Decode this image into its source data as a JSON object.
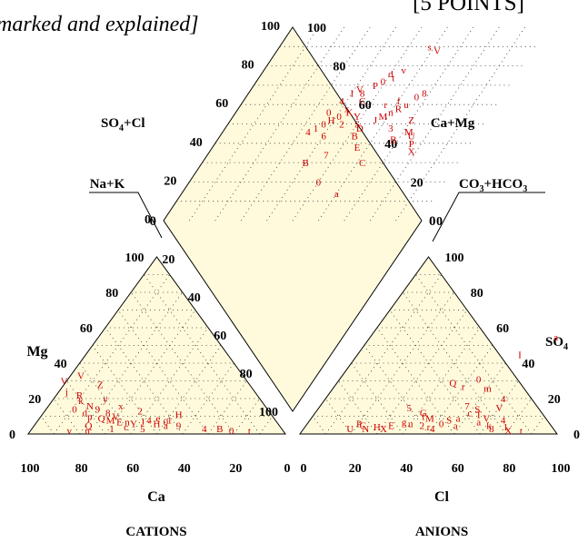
{
  "header": {
    "left_text": "marked and explained]",
    "right_text": "[5 POINTS]"
  },
  "chart_data": {
    "type": "scatter",
    "subtype": "piper-diagram",
    "fill_color": "#fffadc",
    "point_color": "#cc0000",
    "label_color": "#000000",
    "labels": {
      "cations": "CATIONS",
      "anions": "ANIONS",
      "ca": "Ca",
      "cl": "Cl",
      "mg": "Mg",
      "so4": "SO4",
      "so4_cl": "SO4+Cl",
      "ca_mg": "Ca+Mg",
      "na_k": "Na+K",
      "co3_hco3": "CO3+HCO3"
    },
    "ticks": {
      "ca": [
        "100",
        "80",
        "60",
        "40",
        "20",
        "0"
      ],
      "mg": [
        "0",
        "20",
        "40",
        "60",
        "80",
        "100"
      ],
      "cl": [
        "0",
        "20",
        "40",
        "60",
        "80",
        "100"
      ],
      "so4": [
        "100",
        "80",
        "60",
        "40",
        "20",
        "0"
      ],
      "diamond_so4cl": [
        "0",
        "20",
        "40",
        "60",
        "80",
        "100"
      ],
      "diamond_camg": [
        "100",
        "80",
        "60",
        "40",
        "20",
        "0"
      ],
      "diamond_left_lower": [
        "20",
        "40",
        "60",
        "80",
        "100"
      ]
    },
    "cation_points": [
      {
        "ca": 71,
        "mg": 30,
        "m": "V"
      },
      {
        "ca": 73,
        "mg": 24,
        "m": "j"
      },
      {
        "ca": 69,
        "mg": 22,
        "m": "R"
      },
      {
        "ca": 70,
        "mg": 19,
        "m": "k"
      },
      {
        "ca": 68,
        "mg": 16,
        "m": "N"
      },
      {
        "ca": 75,
        "mg": 14,
        "m": "0"
      },
      {
        "ca": 72,
        "mg": 12,
        "m": "d"
      },
      {
        "ca": 66,
        "mg": 14,
        "m": "9"
      },
      {
        "ca": 63,
        "mg": 12,
        "m": "8"
      },
      {
        "ca": 71,
        "mg": 10,
        "m": "p"
      },
      {
        "ca": 67,
        "mg": 9,
        "m": "Q"
      },
      {
        "ca": 64,
        "mg": 8,
        "m": "M"
      },
      {
        "ca": 61,
        "mg": 7,
        "m": "E"
      },
      {
        "ca": 58,
        "mg": 7,
        "m": "n"
      },
      {
        "ca": 56,
        "mg": 6,
        "m": "Y"
      },
      {
        "ca": 52,
        "mg": 7,
        "m": "J"
      },
      {
        "ca": 49,
        "mg": 8,
        "m": "4"
      },
      {
        "ca": 47,
        "mg": 6,
        "m": "H"
      },
      {
        "ca": 45,
        "mg": 9,
        "m": "e"
      },
      {
        "ca": 43,
        "mg": 7,
        "m": "0"
      },
      {
        "ca": 41,
        "mg": 8,
        "m": "1"
      },
      {
        "ca": 39,
        "mg": 5,
        "m": "9"
      },
      {
        "ca": 30,
        "mg": 3,
        "m": "4"
      },
      {
        "ca": 24,
        "mg": 3,
        "m": "B"
      },
      {
        "ca": 20,
        "mg": 2,
        "m": "0"
      },
      {
        "ca": 13,
        "mg": 2,
        "m": "t"
      },
      {
        "ca": 60,
        "mg": 4,
        "m": "c"
      },
      {
        "ca": 54,
        "mg": 3,
        "m": "5"
      },
      {
        "ca": 66,
        "mg": 3,
        "m": "1"
      },
      {
        "ca": 74,
        "mg": 5,
        "m": "Q"
      },
      {
        "ca": 83,
        "mg": 2,
        "m": "v"
      },
      {
        "ca": 76,
        "mg": 2,
        "m": "n"
      },
      {
        "ca": 58,
        "mg": 28,
        "m": "Z"
      },
      {
        "ca": 60,
        "mg": 20,
        "m": "y"
      },
      {
        "ca": 61,
        "mg": 10,
        "m": "V"
      },
      {
        "ca": 56,
        "mg": 16,
        "m": "x"
      },
      {
        "ca": 50,
        "mg": 13,
        "m": "2"
      },
      {
        "ca": 44,
        "mg": 5,
        "m": "a"
      },
      {
        "ca": 36,
        "mg": 11,
        "m": "H"
      },
      {
        "ca": 63,
        "mg": 33,
        "m": "V"
      }
    ],
    "anion_points": [
      {
        "cl": 22,
        "so4": 5,
        "m": "C"
      },
      {
        "cl": 18,
        "so4": 3,
        "m": "U"
      },
      {
        "cl": 20,
        "so4": 6,
        "m": "P"
      },
      {
        "cl": 24,
        "so4": 3,
        "m": "N"
      },
      {
        "cl": 28,
        "so4": 4,
        "m": "H"
      },
      {
        "cl": 31,
        "so4": 3,
        "m": "X"
      },
      {
        "cl": 33,
        "so4": 5,
        "m": "E"
      },
      {
        "cl": 37,
        "so4": 7,
        "m": "g"
      },
      {
        "cl": 40,
        "so4": 6,
        "m": "u"
      },
      {
        "cl": 43,
        "so4": 10,
        "m": "f"
      },
      {
        "cl": 46,
        "so4": 9,
        "m": "M"
      },
      {
        "cl": 45,
        "so4": 5,
        "m": "2"
      },
      {
        "cl": 48,
        "so4": 4,
        "m": "r"
      },
      {
        "cl": 50,
        "so4": 3,
        "m": "4"
      },
      {
        "cl": 52,
        "so4": 6,
        "m": "0"
      },
      {
        "cl": 54,
        "so4": 8,
        "m": "S"
      },
      {
        "cl": 57,
        "so4": 9,
        "m": "a"
      },
      {
        "cl": 58,
        "so4": 5,
        "m": "a"
      },
      {
        "cl": 60,
        "so4": 12,
        "m": "c"
      },
      {
        "cl": 62,
        "so4": 14,
        "m": "S"
      },
      {
        "cl": 64,
        "so4": 11,
        "m": "T"
      },
      {
        "cl": 66,
        "so4": 7,
        "m": "a"
      },
      {
        "cl": 68,
        "so4": 9,
        "m": "V"
      },
      {
        "cl": 70,
        "so4": 15,
        "m": "V"
      },
      {
        "cl": 71,
        "so4": 5,
        "m": "k"
      },
      {
        "cl": 73,
        "so4": 3,
        "m": "8"
      },
      {
        "cl": 75,
        "so4": 8,
        "m": "4"
      },
      {
        "cl": 78,
        "so4": 4,
        "m": "1"
      },
      {
        "cl": 80,
        "so4": 2,
        "m": "X"
      },
      {
        "cl": 85,
        "so4": 2,
        "m": "t"
      },
      {
        "cl": 45,
        "so4": 29,
        "m": "Q"
      },
      {
        "cl": 50,
        "so4": 27,
        "m": "r"
      },
      {
        "cl": 54,
        "so4": 31,
        "m": "0"
      },
      {
        "cl": 60,
        "so4": 26,
        "m": "m"
      },
      {
        "cl": 63,
        "so4": 45,
        "m": "I"
      },
      {
        "cl": 72,
        "so4": 55,
        "m": "a"
      },
      {
        "cl": 42,
        "so4": 12,
        "m": "G"
      },
      {
        "cl": 35,
        "so4": 15,
        "m": "5"
      },
      {
        "cl": 69,
        "so4": 20,
        "m": "4"
      },
      {
        "cl": 57,
        "so4": 16,
        "m": "7"
      }
    ],
    "diamond_points": [
      {
        "a": 62,
        "b": 88,
        "m": "V"
      },
      {
        "a": 58,
        "b": 90,
        "m": "s"
      },
      {
        "a": 54,
        "b": 78,
        "m": "v"
      },
      {
        "a": 50,
        "b": 76,
        "m": "d"
      },
      {
        "a": 52,
        "b": 74,
        "m": "t"
      },
      {
        "a": 49,
        "b": 72,
        "m": "0"
      },
      {
        "a": 47,
        "b": 70,
        "m": "P"
      },
      {
        "a": 44,
        "b": 66,
        "m": "8"
      },
      {
        "a": 42,
        "b": 68,
        "m": "V"
      },
      {
        "a": 40,
        "b": 66,
        "m": "I"
      },
      {
        "a": 38,
        "b": 62,
        "m": "4"
      },
      {
        "a": 46,
        "b": 62,
        "m": "C"
      },
      {
        "a": 42,
        "b": 58,
        "m": "x"
      },
      {
        "a": 44,
        "b": 56,
        "m": "K"
      },
      {
        "a": 41,
        "b": 54,
        "m": "0"
      },
      {
        "a": 39,
        "b": 52,
        "m": "H"
      },
      {
        "a": 37,
        "b": 50,
        "m": "0"
      },
      {
        "a": 35,
        "b": 48,
        "m": "1"
      },
      {
        "a": 33,
        "b": 46,
        "m": "4"
      },
      {
        "a": 48,
        "b": 54,
        "m": "Y"
      },
      {
        "a": 50,
        "b": 50,
        "m": "S"
      },
      {
        "a": 52,
        "b": 48,
        "m": "D"
      },
      {
        "a": 56,
        "b": 52,
        "m": "J"
      },
      {
        "a": 58,
        "b": 54,
        "m": "M"
      },
      {
        "a": 60,
        "b": 56,
        "m": "n"
      },
      {
        "a": 62,
        "b": 58,
        "m": "R"
      },
      {
        "a": 64,
        "b": 60,
        "m": "u"
      },
      {
        "a": 66,
        "b": 64,
        "m": "0"
      },
      {
        "a": 68,
        "b": 66,
        "m": "8"
      },
      {
        "a": 70,
        "b": 52,
        "m": "Z"
      },
      {
        "a": 72,
        "b": 46,
        "m": "M"
      },
      {
        "a": 68,
        "b": 42,
        "m": "B"
      },
      {
        "a": 74,
        "b": 44,
        "m": "U"
      },
      {
        "a": 76,
        "b": 40,
        "m": "P"
      },
      {
        "a": 78,
        "b": 36,
        "m": "X"
      },
      {
        "a": 56,
        "b": 38,
        "m": "E"
      },
      {
        "a": 46,
        "b": 34,
        "m": "7"
      },
      {
        "a": 40,
        "b": 30,
        "m": "B"
      },
      {
        "a": 62,
        "b": 30,
        "m": "C"
      },
      {
        "a": 50,
        "b": 20,
        "m": "0"
      },
      {
        "a": 60,
        "b": 14,
        "m": "a"
      },
      {
        "a": 52,
        "b": 44,
        "m": "B"
      },
      {
        "a": 56,
        "b": 60,
        "m": "r"
      },
      {
        "a": 60,
        "b": 62,
        "m": "f"
      },
      {
        "a": 44,
        "b": 50,
        "m": "2"
      },
      {
        "a": 36,
        "b": 56,
        "m": "0"
      },
      {
        "a": 40,
        "b": 44,
        "m": "6"
      },
      {
        "a": 64,
        "b": 48,
        "m": "3"
      }
    ]
  }
}
